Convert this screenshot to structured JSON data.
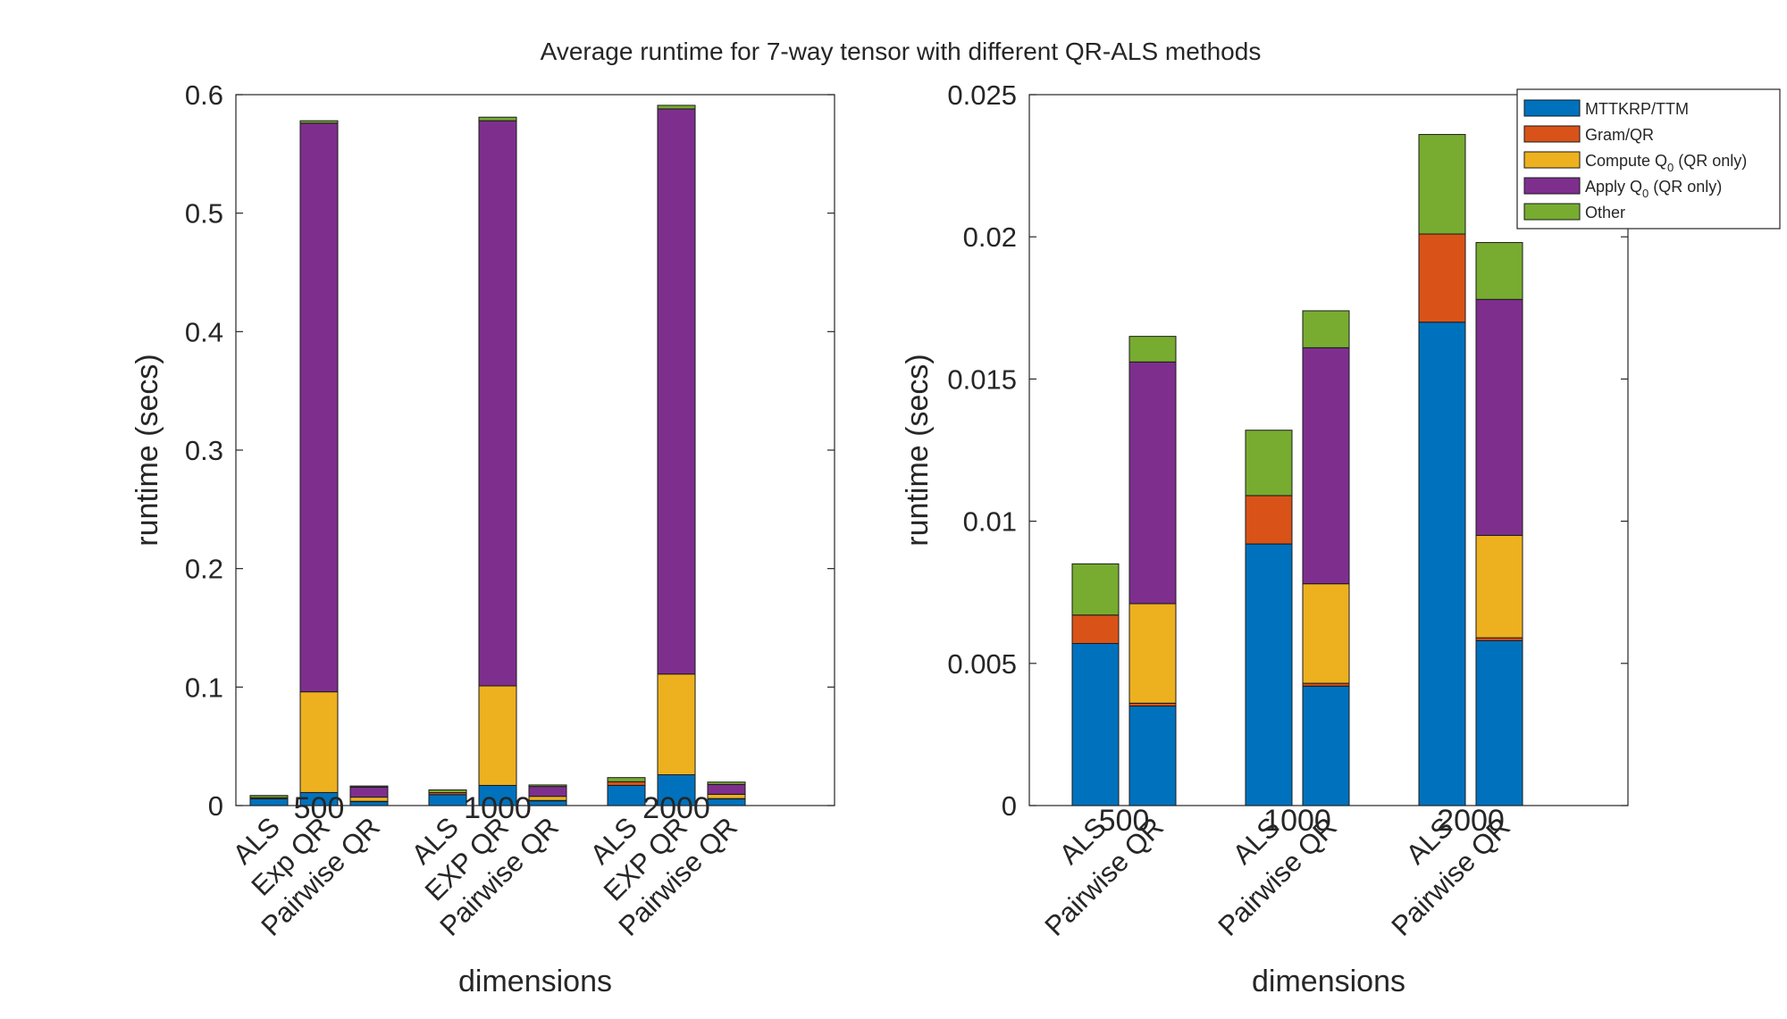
{
  "title": "Average runtime for 7-way tensor with different QR-ALS methods",
  "colors": {
    "MTTKRP/TTM": "#0072BD",
    "Gram/QR": "#D95319",
    "Compute Q0": "#EDB120",
    "Apply Q0": "#7E2F8E",
    "Other": "#77AC30"
  },
  "legend": {
    "position": "top-right",
    "entries": [
      {
        "key": "MTTKRP/TTM",
        "label": "MTTKRP/TTM",
        "sub": "",
        "suffix": ""
      },
      {
        "key": "Gram/QR",
        "label": "Gram/QR",
        "sub": "",
        "suffix": ""
      },
      {
        "key": "Compute Q0",
        "label": "Compute Q",
        "sub": "0",
        "suffix": " (QR only)"
      },
      {
        "key": "Apply Q0",
        "label": "Apply Q",
        "sub": "0",
        "suffix": " (QR only)"
      },
      {
        "key": "Other",
        "label": "Other",
        "sub": "",
        "suffix": ""
      }
    ]
  },
  "chart_data": [
    {
      "type": "bar",
      "stacked": true,
      "xlabel": "dimensions",
      "ylabel": "runtime (secs)",
      "ylim": [
        0,
        0.6
      ],
      "yticks": [
        "0",
        "0.1",
        "0.2",
        "0.3",
        "0.4",
        "0.5",
        "0.6"
      ],
      "categories": [
        "500",
        "1000",
        "2000"
      ],
      "bar_labels": [
        [
          "ALS",
          "Exp QR",
          "Pairwise QR"
        ],
        [
          "ALS",
          "EXP QR",
          "Pairwise QR"
        ],
        [
          "ALS",
          "EXP QR",
          "Pairwise QR"
        ]
      ],
      "series": [
        {
          "name": "MTTKRP/TTM",
          "values": [
            [
              0.0057,
              0.011,
              0.0035
            ],
            [
              0.0092,
              0.017,
              0.0042
            ],
            [
              0.017,
              0.026,
              0.0058
            ]
          ]
        },
        {
          "name": "Gram/QR",
          "values": [
            [
              0.001,
              0.0,
              0.0001
            ],
            [
              0.0017,
              0.0,
              0.0001
            ],
            [
              0.0031,
              0.0,
              0.0001
            ]
          ]
        },
        {
          "name": "Compute Q0",
          "values": [
            [
              0.0,
              0.085,
              0.0035
            ],
            [
              0.0,
              0.084,
              0.0035
            ],
            [
              0.0,
              0.085,
              0.0036
            ]
          ]
        },
        {
          "name": "Apply Q0",
          "values": [
            [
              0.0,
              0.48,
              0.0085
            ],
            [
              0.0,
              0.477,
              0.0083
            ],
            [
              0.0,
              0.477,
              0.0083
            ]
          ]
        },
        {
          "name": "Other",
          "values": [
            [
              0.0018,
              0.002,
              0.0009
            ],
            [
              0.0023,
              0.003,
              0.0013
            ],
            [
              0.0035,
              0.003,
              0.002
            ]
          ]
        }
      ]
    },
    {
      "type": "bar",
      "stacked": true,
      "xlabel": "dimensions",
      "ylabel": "runtime (secs)",
      "ylim": [
        0,
        0.025
      ],
      "yticks": [
        "0",
        "0.005",
        "0.01",
        "0.015",
        "0.02",
        "0.025"
      ],
      "categories": [
        "500",
        "1000",
        "2000"
      ],
      "bar_labels": [
        [
          "ALS",
          "Pairwise QR"
        ],
        [
          "ALS",
          "Pairwise QR"
        ],
        [
          "ALS",
          "Pairwise QR"
        ]
      ],
      "series": [
        {
          "name": "MTTKRP/TTM",
          "values": [
            [
              0.0057,
              0.0035
            ],
            [
              0.0092,
              0.0042
            ],
            [
              0.017,
              0.0058
            ]
          ]
        },
        {
          "name": "Gram/QR",
          "values": [
            [
              0.001,
              0.0001
            ],
            [
              0.0017,
              0.0001
            ],
            [
              0.0031,
              0.0001
            ]
          ]
        },
        {
          "name": "Compute Q0",
          "values": [
            [
              0.0,
              0.0035
            ],
            [
              0.0,
              0.0035
            ],
            [
              0.0,
              0.0036
            ]
          ]
        },
        {
          "name": "Apply Q0",
          "values": [
            [
              0.0,
              0.0085
            ],
            [
              0.0,
              0.0083
            ],
            [
              0.0,
              0.0083
            ]
          ]
        },
        {
          "name": "Other",
          "values": [
            [
              0.0018,
              0.0009
            ],
            [
              0.0023,
              0.0013
            ],
            [
              0.0035,
              0.002
            ]
          ]
        }
      ]
    }
  ]
}
